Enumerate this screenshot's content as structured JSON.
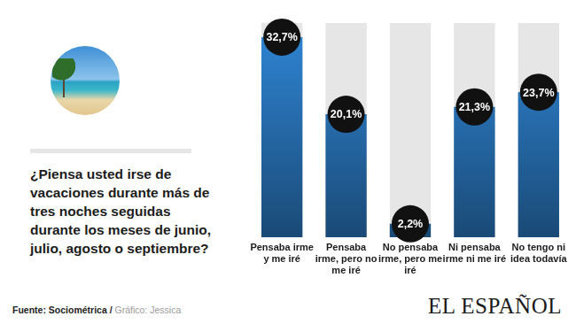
{
  "chart_data": {
    "type": "bar",
    "title": "¿Piensa usted irse de vacaciones durante más de tres noches seguidas durante los meses de junio, julio, agosto o septiembre?",
    "categories": [
      "Pensaba irme y me iré",
      "Pensaba irme, pero no me iré",
      "No pensaba irme, pero me iré",
      "Ni pensaba irme ni me iré",
      "No tengo ni idea todavía"
    ],
    "values": [
      32.7,
      20.1,
      2.2,
      21.3,
      23.7
    ],
    "value_labels": [
      "32,7%",
      "20,1%",
      "2,2%",
      "21,3%",
      "23,7%"
    ],
    "data_labels": true,
    "color": "#2f86d6",
    "ylim": [
      0,
      35
    ],
    "tick_labels": "x",
    "grid": false,
    "source": "Fuente: Sociométrica /",
    "credit": "Gráfico: Jessica",
    "logo": "EL ESPAÑOL"
  }
}
